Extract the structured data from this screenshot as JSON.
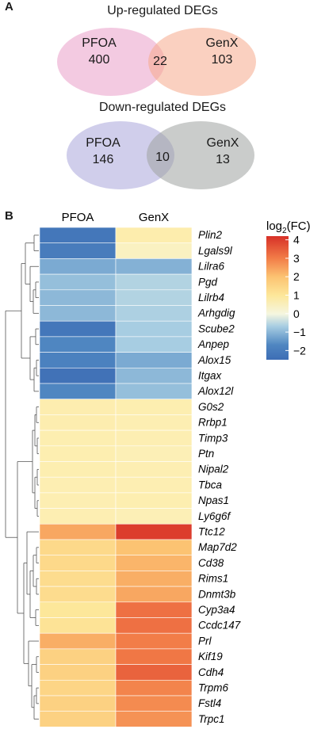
{
  "panelA": {
    "letter": "A",
    "up": {
      "title": "Up-regulated DEGs",
      "left_name": "PFOA",
      "left_count": "400",
      "overlap_count": "22",
      "right_name": "GenX",
      "right_count": "103",
      "left_color": "#ea9fc9",
      "right_color": "#f5a98c"
    },
    "down": {
      "title": "Down-regulated DEGs",
      "left_name": "PFOA",
      "left_count": "146",
      "overlap_count": "10",
      "right_name": "GenX",
      "right_count": "13",
      "left_color": "#a9a6db",
      "right_color": "#9ea3a0"
    }
  },
  "panelB": {
    "letter": "B",
    "columns": [
      "PFOA",
      "GenX"
    ],
    "legend": {
      "title_main": "log",
      "title_sub": "2",
      "title_end": "(FC)",
      "ticks": [
        "4",
        "3",
        "2",
        "1",
        "0",
        "−1",
        "−2"
      ],
      "tick_values": [
        4,
        3,
        2,
        1,
        0,
        -1,
        -2
      ],
      "range": [
        -2.5,
        4.2
      ]
    },
    "genes": [
      {
        "name": "Plin2",
        "values": [
          -2.3,
          0.45
        ]
      },
      {
        "name": "Lgals9l",
        "values": [
          -2.2,
          0.1
        ]
      },
      {
        "name": "Lilra6",
        "values": [
          -1.5,
          -1.4
        ]
      },
      {
        "name": "Pgd",
        "values": [
          -1.2,
          -0.9
        ]
      },
      {
        "name": "Lilrb4",
        "values": [
          -1.3,
          -0.9
        ]
      },
      {
        "name": "Arhgdig",
        "values": [
          -1.3,
          -0.95
        ]
      },
      {
        "name": "Scube2",
        "values": [
          -2.3,
          -1.0
        ]
      },
      {
        "name": "Anpep",
        "values": [
          -2.0,
          -1.0
        ]
      },
      {
        "name": "Alox15",
        "values": [
          -2.1,
          -1.5
        ]
      },
      {
        "name": "Itgax",
        "values": [
          -2.4,
          -1.3
        ]
      },
      {
        "name": "Alox12l",
        "values": [
          -2.0,
          -1.2
        ]
      },
      {
        "name": "G0s2",
        "values": [
          0.4,
          0.35
        ]
      },
      {
        "name": "Rrbp1",
        "values": [
          0.4,
          0.3
        ]
      },
      {
        "name": "Timp3",
        "values": [
          0.35,
          0.3
        ]
      },
      {
        "name": "Ptn",
        "values": [
          0.35,
          0.25
        ]
      },
      {
        "name": "Nipal2",
        "values": [
          0.35,
          0.3
        ]
      },
      {
        "name": "Tbca",
        "values": [
          0.3,
          0.3
        ]
      },
      {
        "name": "Npas1",
        "values": [
          0.3,
          0.35
        ]
      },
      {
        "name": "Ly6g6f",
        "values": [
          0.3,
          0.25
        ]
      },
      {
        "name": "Ttc12",
        "values": [
          2.4,
          4.0
        ]
      },
      {
        "name": "Map7d2",
        "values": [
          1.4,
          2.0
        ]
      },
      {
        "name": "Cd38",
        "values": [
          1.4,
          2.2
        ]
      },
      {
        "name": "Rims1",
        "values": [
          1.3,
          2.3
        ]
      },
      {
        "name": "Dnmt3b",
        "values": [
          1.3,
          2.4
        ]
      },
      {
        "name": "Cyp3a4",
        "values": [
          1.0,
          3.2
        ]
      },
      {
        "name": "Ccdc147",
        "values": [
          1.1,
          3.2
        ]
      },
      {
        "name": "Prl",
        "values": [
          2.3,
          3.0
        ]
      },
      {
        "name": "Kif19",
        "values": [
          1.6,
          3.1
        ]
      },
      {
        "name": "Cdh4",
        "values": [
          1.6,
          3.4
        ]
      },
      {
        "name": "Trpm6",
        "values": [
          1.5,
          2.9
        ]
      },
      {
        "name": "Fstl4",
        "values": [
          1.6,
          2.8
        ]
      },
      {
        "name": "Trpc1",
        "values": [
          1.6,
          2.7
        ]
      }
    ]
  }
}
